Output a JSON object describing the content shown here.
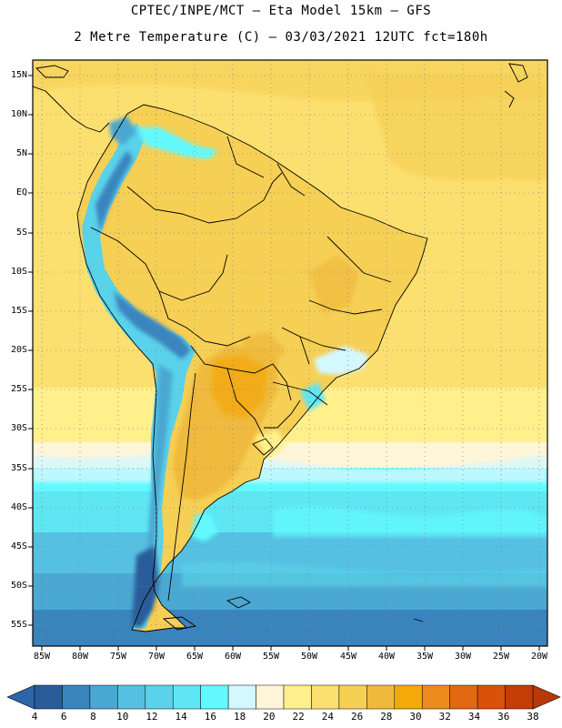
{
  "header": {
    "line1": "CPTEC/INPE/MCT –  Eta Model 15km – GFS",
    "line2": "2 Metre Temperature (C) – 03/03/2021 12UTC fct=180h"
  },
  "map": {
    "lat_labels": [
      "15N",
      "10N",
      "5N",
      "EQ",
      "5S",
      "10S",
      "15S",
      "20S",
      "25S",
      "30S",
      "35S",
      "40S",
      "45S",
      "50S",
      "55S"
    ],
    "lon_labels": [
      "85W",
      "80W",
      "75W",
      "70W",
      "65W",
      "60W",
      "55W",
      "50W",
      "45W",
      "40W",
      "35W",
      "30W",
      "25W",
      "20W"
    ],
    "gridlines": "dotted"
  },
  "colorbar": {
    "labels": [
      "4",
      "6",
      "8",
      "10",
      "12",
      "14",
      "16",
      "18",
      "20",
      "22",
      "24",
      "26",
      "28",
      "30",
      "32",
      "34",
      "36",
      "38"
    ],
    "colors": [
      "#2a5c9a",
      "#3a84be",
      "#4aa8d2",
      "#56c0e2",
      "#5ad2ea",
      "#5ee6f2",
      "#62faff",
      "#d4f8ff",
      "#fff5d8",
      "#fff08c",
      "#fbe070",
      "#f6cf55",
      "#efba3c",
      "#f4a80a",
      "#ec8a1e",
      "#e26812",
      "#d8520a",
      "#c43c06"
    ],
    "low_cap_color": "#2e65a8",
    "high_cap_color": "#b8380a"
  }
}
